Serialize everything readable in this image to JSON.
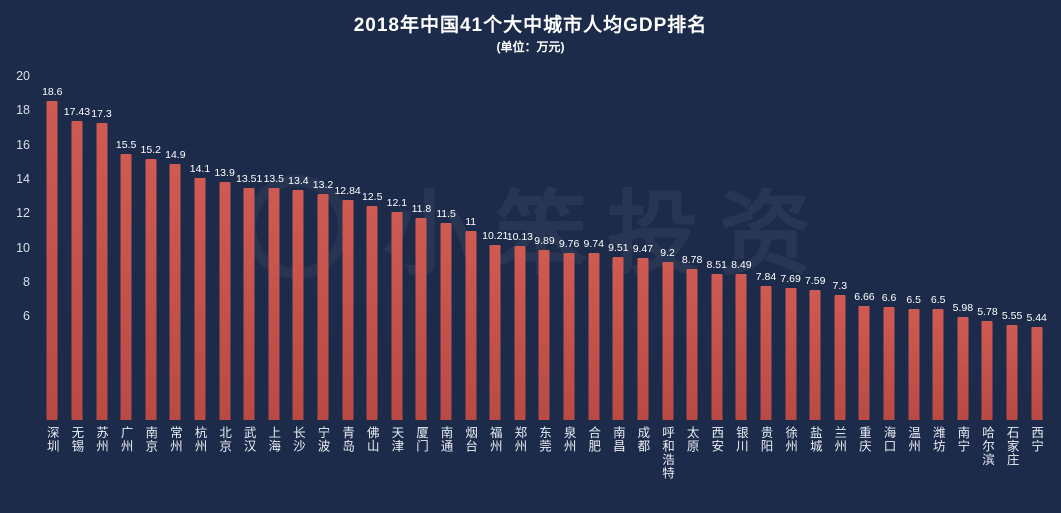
{
  "title": "2018年中国41个大中城市人均GDP排名",
  "subtitle": "(单位：万元)",
  "watermark": {
    "text": "小笨投资"
  },
  "colors": {
    "background": "#1c2b4a",
    "bar": "#b94a44",
    "bar_light": "#cf5a52",
    "text": "#ffffff"
  },
  "chart_data": {
    "type": "bar",
    "title": "2018年中国41个大中城市人均GDP排名",
    "subtitle": "(单位：万元)",
    "xlabel": "",
    "ylabel": "万元",
    "ylim": [
      0,
      20
    ],
    "yticks": [
      20,
      18,
      16,
      14,
      12,
      10,
      8,
      6
    ],
    "grid": false,
    "legend_position": "none",
    "categories": [
      "深圳",
      "无锡",
      "苏州",
      "广州",
      "南京",
      "常州",
      "杭州",
      "北京",
      "武汉",
      "上海",
      "长沙",
      "宁波",
      "青岛",
      "佛山",
      "天津",
      "厦门",
      "南通",
      "烟台",
      "福州",
      "郑州",
      "东莞",
      "泉州",
      "合肥",
      "南昌",
      "成都",
      "呼和浩特",
      "太原",
      "西安",
      "银川",
      "贵阳",
      "徐州",
      "盐城",
      "兰州",
      "重庆",
      "海口",
      "温州",
      "潍坊",
      "南宁",
      "哈尔滨",
      "石家庄",
      "西宁"
    ],
    "values": [
      18.6,
      17.43,
      17.3,
      15.5,
      15.2,
      14.9,
      14.1,
      13.9,
      13.51,
      13.5,
      13.4,
      13.2,
      12.84,
      12.5,
      12.1,
      11.8,
      11.5,
      11,
      10.21,
      10.13,
      9.89,
      9.76,
      9.74,
      9.51,
      9.47,
      9.2,
      8.78,
      8.51,
      8.49,
      7.84,
      7.69,
      7.59,
      7.3,
      6.66,
      6.6,
      6.5,
      6.5,
      5.98,
      5.78,
      5.55,
      5.44
    ],
    "value_labels": [
      "18.6",
      "17.43",
      "17.3",
      "15.5",
      "15.2",
      "14.9",
      "14.1",
      "13.9",
      "13.51",
      "13.5",
      "13.4",
      "13.2",
      "12.84",
      "12.5",
      "12.1",
      "11.8",
      "11.5",
      "11",
      "10.21",
      "10.13",
      "9.89",
      "9.76",
      "9.74",
      "9.51",
      "9.47",
      "9.2",
      "8.78",
      "8.51",
      "8.49",
      "7.84",
      "7.69",
      "7.59",
      "7.3",
      "6.66",
      "6.6",
      "6.5",
      "6.5",
      "5.98",
      "5.78",
      "5.55",
      "5.44"
    ]
  }
}
